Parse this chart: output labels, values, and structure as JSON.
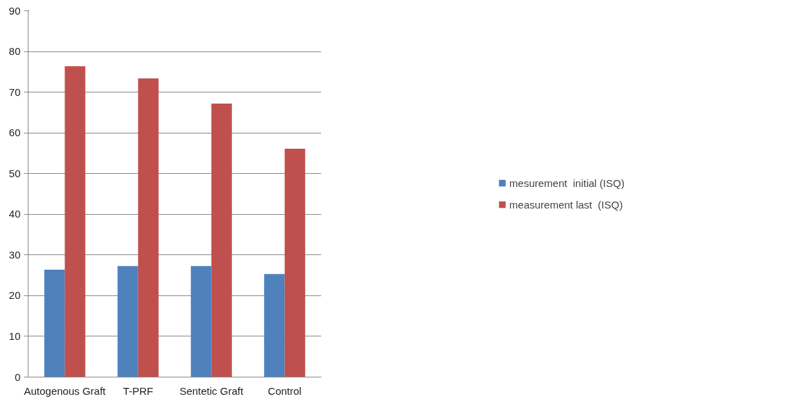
{
  "chart_data": {
    "type": "bar",
    "categories": [
      "Autogenous Graft",
      "T-PRF",
      "Sentetic Graft",
      "Control"
    ],
    "series": [
      {
        "name": "mesurement  initial (ISQ)",
        "color": "#4f81bd",
        "values": [
          26.4,
          27.3,
          27.3,
          25.3
        ]
      },
      {
        "name": "measurement last  (ISQ)",
        "color": "#c0504d",
        "values": [
          76.4,
          73.4,
          67.2,
          56.1
        ]
      }
    ],
    "ylim": [
      0,
      90
    ],
    "yticks": [
      0,
      10,
      20,
      30,
      40,
      50,
      60,
      70,
      80,
      90
    ],
    "grid": "y",
    "legend": "right"
  }
}
